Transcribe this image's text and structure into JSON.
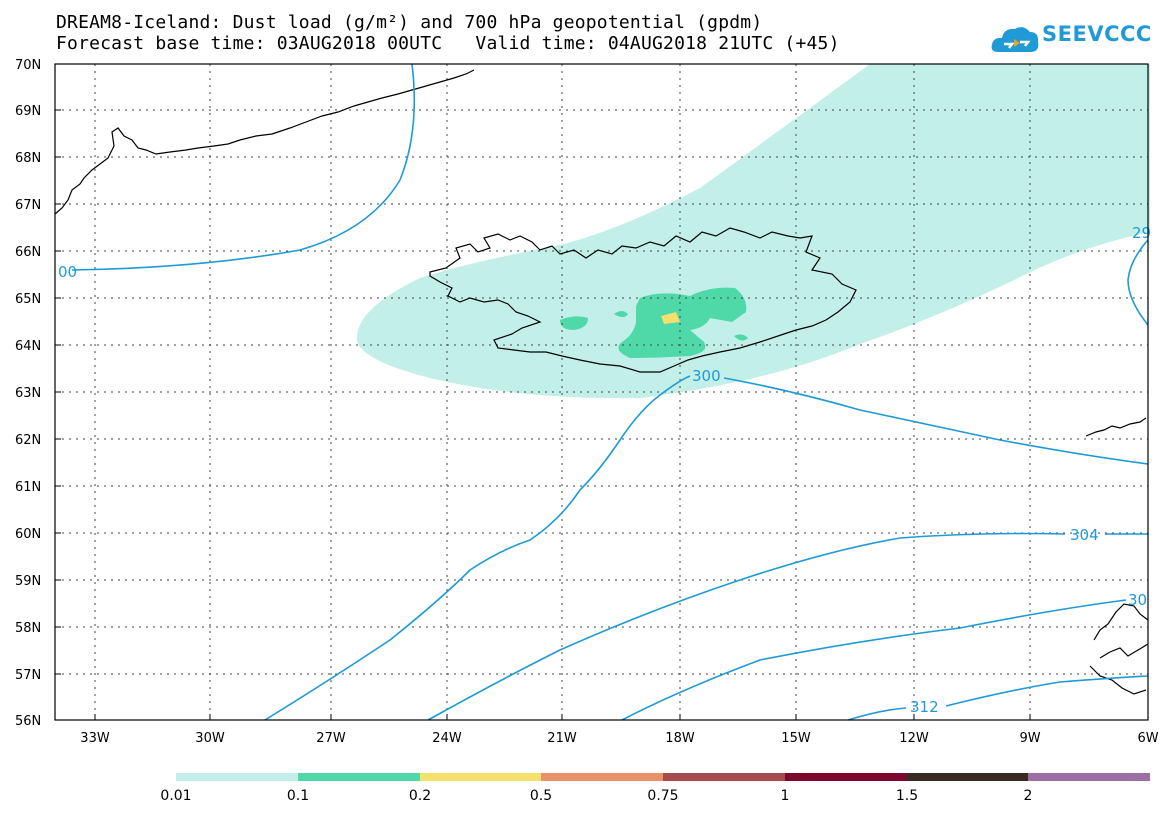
{
  "title": {
    "line1": "DREAM8-Iceland: Dust load (g/m²) and 700 hPa geopotential (gpdm)",
    "line2": "Forecast base time: 03AUG2018 00UTC   Valid time: 04AUG2018 21UTC (+45)"
  },
  "logo": {
    "text": "SEEVCCC",
    "color": "#1f9ad6"
  },
  "map": {
    "lat_labels": [
      "70N",
      "69N",
      "68N",
      "67N",
      "66N",
      "65N",
      "64N",
      "63N",
      "62N",
      "61N",
      "60N",
      "59N",
      "58N",
      "57N",
      "56N"
    ],
    "lon_labels": [
      "33W",
      "30W",
      "27W",
      "24W",
      "21W",
      "18W",
      "15W",
      "12W",
      "9W",
      "6W"
    ],
    "contour_labels": [
      "00",
      "300",
      "304",
      "312",
      "29",
      "30"
    ],
    "contour_color": "#1f9ad6",
    "coastline_color": "#000000"
  },
  "colorbar": {
    "colors": [
      "#c2efe8",
      "#4fd8a8",
      "#f4e06a",
      "#e8916a",
      "#a64b4b",
      "#7d0a2c",
      "#3a2a22",
      "#9b6fa3"
    ],
    "labels": [
      "0.01",
      "0.1",
      "0.2",
      "0.5",
      "0.75",
      "1",
      "1.5",
      "2"
    ]
  }
}
